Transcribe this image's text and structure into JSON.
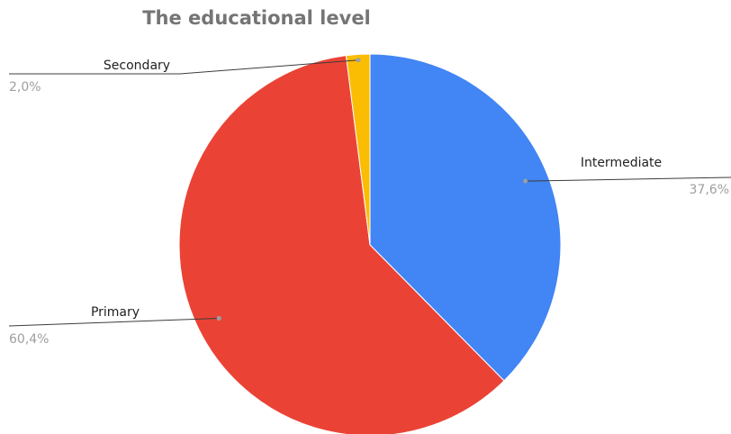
{
  "chart_data": {
    "type": "pie",
    "title": "The educational level",
    "slices": [
      {
        "label": "Intermediate",
        "value": 37.6,
        "percent_label": "37,6%",
        "color": "#4285f4"
      },
      {
        "label": "Primary",
        "value": 60.4,
        "percent_label": "60,4%",
        "color": "#ea4335"
      },
      {
        "label": "Secondary",
        "value": 2.0,
        "percent_label": "2,0%",
        "color": "#fbbc04"
      }
    ],
    "start_angle": "12 o'clock",
    "direction": "clockwise",
    "legend": "none (leader-line labels)"
  }
}
